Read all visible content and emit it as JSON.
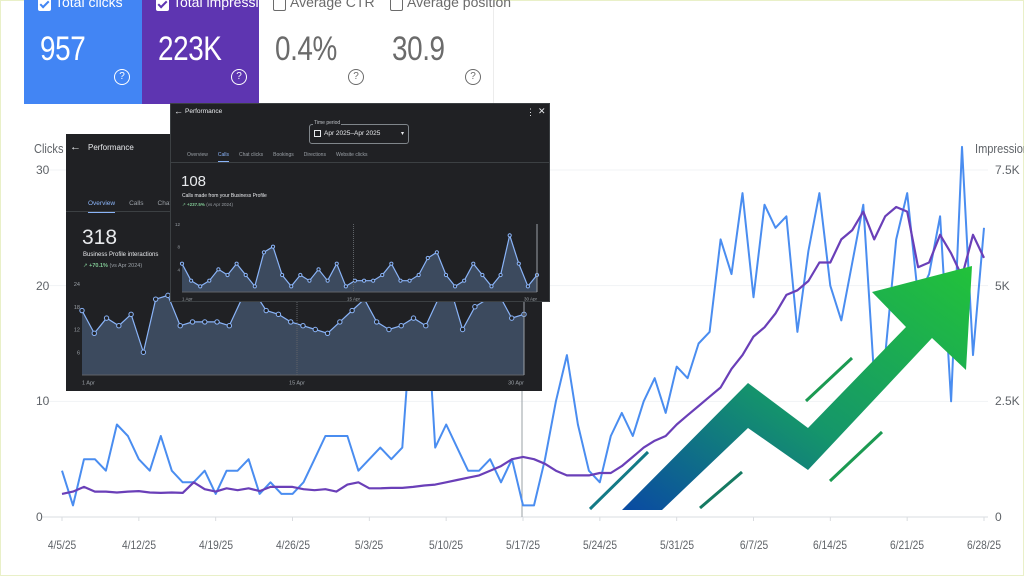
{
  "metrics": {
    "clicks": {
      "label": "Total clicks",
      "value": "957",
      "checked": true,
      "color": "#4285f4"
    },
    "impressions": {
      "label": "Total impressions",
      "value": "223K",
      "checked": true,
      "color": "#5e35b1"
    },
    "ctr": {
      "label": "Average CTR",
      "value": "0.4%",
      "checked": false
    },
    "position": {
      "label": "Average position",
      "value": "30.9",
      "checked": false
    }
  },
  "help_glyph": "?",
  "chart_data": {
    "type": "line",
    "left_axis_label": "Clicks",
    "right_axis_label": "Impressions",
    "left_ticks": [
      "30",
      "20",
      "10",
      "0"
    ],
    "right_ticks": [
      "7.5K",
      "5K",
      "2.5K",
      "0"
    ],
    "ylim_left": [
      0,
      30
    ],
    "ylim_right": [
      0,
      7500
    ],
    "x_tick_labels": [
      "4/5/25",
      "4/12/25",
      "4/19/25",
      "4/26/25",
      "5/3/25",
      "5/10/25",
      "5/17/25",
      "5/24/25",
      "5/31/25",
      "6/7/25",
      "6/14/25",
      "6/21/25",
      "6/28/25"
    ],
    "series": [
      {
        "name": "Total clicks",
        "axis": "left",
        "color": "#4a8df0",
        "values": [
          4,
          1,
          5,
          5,
          4,
          8,
          7,
          5,
          4,
          7,
          4,
          3,
          3,
          4,
          2,
          4,
          4,
          5,
          2,
          3,
          2,
          2,
          3,
          5,
          7,
          7,
          7,
          4,
          5,
          6,
          5,
          6,
          19,
          22,
          6,
          8,
          6,
          4,
          4,
          5,
          3,
          5,
          1,
          1,
          5,
          10,
          14,
          8,
          4,
          3,
          7,
          9,
          7,
          10,
          12,
          9,
          13,
          12,
          15,
          16,
          24,
          21,
          28,
          19,
          27,
          25,
          26,
          16,
          23,
          28,
          20,
          17,
          22,
          27,
          12,
          14,
          24,
          28,
          19,
          21,
          26,
          10,
          32,
          14,
          25
        ]
      },
      {
        "name": "Total impressions",
        "axis": "right",
        "color": "#6a3fb8",
        "values": [
          500,
          550,
          650,
          550,
          550,
          530,
          550,
          560,
          530,
          520,
          530,
          520,
          750,
          600,
          550,
          620,
          580,
          620,
          560,
          650,
          650,
          650,
          600,
          580,
          600,
          550,
          700,
          750,
          620,
          620,
          630,
          630,
          650,
          680,
          700,
          750,
          800,
          850,
          900,
          1000,
          1100,
          1250,
          1300,
          1250,
          1150,
          1000,
          900,
          900,
          900,
          950,
          950,
          1100,
          1300,
          1500,
          1650,
          1750,
          2000,
          2200,
          2400,
          2600,
          2800,
          3200,
          3500,
          3900,
          4100,
          4400,
          4800,
          4900,
          5100,
          5500,
          5500,
          6000,
          6200,
          6600,
          6000,
          6500,
          6700,
          6600,
          5400,
          5500,
          6100,
          5700,
          5200,
          6100,
          5600
        ]
      }
    ]
  },
  "panel_overview": {
    "title": "Performance",
    "tabs": [
      "Overview",
      "Calls",
      "Chat c"
    ],
    "big_value": "318",
    "subtitle": "Business Profile interactions",
    "change": "+70.1%",
    "compare": "(vs Apr 2024)",
    "y_ticks": [
      "24",
      "18",
      "12",
      "6"
    ],
    "x_ticks": [
      "1 Apr",
      "15 Apr",
      "30 Apr"
    ],
    "chart_data": {
      "type": "area",
      "ylim": [
        0,
        24
      ],
      "values": [
        17,
        11,
        15,
        13,
        16,
        6,
        20,
        21,
        13,
        14,
        14,
        14,
        13,
        20,
        22,
        17,
        16,
        14,
        13,
        12,
        11,
        14,
        17,
        20,
        14,
        12,
        13,
        15,
        13,
        20,
        23,
        12,
        18,
        20,
        21,
        15,
        16
      ]
    }
  },
  "panel_calls": {
    "title": "Performance",
    "period_label": "Time period",
    "period_value": "Apr 2025–Apr 2025",
    "tabs": [
      "Overview",
      "Calls",
      "Chat clicks",
      "Bookings",
      "Directions",
      "Website clicks"
    ],
    "big_value": "108",
    "subtitle": "Calls made from your Business Profile",
    "change": "+237.5%",
    "compare": "(vs Apr 2024)",
    "y_ticks": [
      "12",
      "8",
      "4"
    ],
    "x_ticks": [
      "1 Apr",
      "15 Apr",
      "30 Apr"
    ],
    "chart_data": {
      "type": "area",
      "ylim": [
        0,
        12
      ],
      "values": [
        5,
        2,
        1,
        2,
        4,
        3,
        5,
        3,
        1,
        7,
        8,
        3,
        1,
        3,
        2,
        4,
        2,
        5,
        1,
        2,
        2,
        2,
        3,
        5,
        2,
        2,
        3,
        6,
        7,
        3,
        1,
        2,
        5,
        3,
        1,
        3,
        10,
        5,
        1,
        3
      ]
    }
  }
}
